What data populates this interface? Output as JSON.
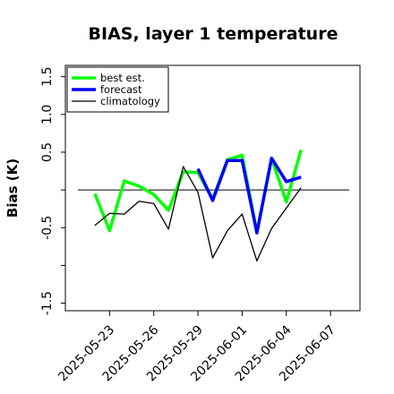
{
  "chart_data": {
    "type": "line",
    "title": "BIAS, layer 1 temperature",
    "xlabel": "",
    "ylabel": "Bias (K)",
    "x_is_date": true,
    "xlim": [
      "2025-05-20",
      "2025-06-09"
    ],
    "ylim": [
      -1.6,
      1.65
    ],
    "yticks": [
      -1.5,
      -1.0,
      -0.5,
      0.0,
      0.5,
      1.0,
      1.5
    ],
    "ytick_labels": [
      "-1.5",
      "",
      "-0.5",
      "",
      "0.5",
      "1.0",
      "1.5"
    ],
    "xticks": [
      "2025-05-23",
      "2025-05-26",
      "2025-05-29",
      "2025-06-01",
      "2025-06-04",
      "2025-06-07"
    ],
    "xtick_labels": [
      "2025-05-23",
      "2025-05-26",
      "2025-05-29",
      "2025-06-01",
      "2025-06-04",
      "2025-06-07"
    ],
    "highlight_tick": "2025-05-29",
    "highlight_color": "#2e8b2e",
    "zero_line": true,
    "grid": false,
    "legend_position": "top-left",
    "series": [
      {
        "name": "best est.",
        "color": "#00ff00",
        "x": [
          "2025-05-22",
          "2025-05-23",
          "2025-05-24",
          "2025-05-25",
          "2025-05-26",
          "2025-05-27",
          "2025-05-28",
          "2025-05-29",
          "2025-05-30",
          "2025-05-31",
          "2025-06-01",
          "2025-06-02",
          "2025-06-03",
          "2025-06-04",
          "2025-06-05",
          "2025-06-06"
        ],
        "values": [
          -0.05,
          -0.54,
          0.12,
          0.05,
          -0.06,
          -0.27,
          0.24,
          0.23,
          -0.12,
          0.4,
          0.46,
          -0.56,
          0.42,
          -0.16,
          0.53,
          null
        ]
      },
      {
        "name": "forecast",
        "color": "#0000ff",
        "x": [
          "2025-05-29",
          "2025-05-30",
          "2025-05-31",
          "2025-06-01",
          "2025-06-02",
          "2025-06-03",
          "2025-06-04",
          "2025-06-05",
          "2025-06-06"
        ],
        "values": [
          0.28,
          -0.14,
          0.39,
          0.39,
          -0.57,
          0.42,
          0.11,
          0.17,
          null
        ]
      },
      {
        "name": "climatology",
        "color": "#000000",
        "x": [
          "2025-05-22",
          "2025-05-23",
          "2025-05-24",
          "2025-05-25",
          "2025-05-26",
          "2025-05-27",
          "2025-05-28",
          "2025-05-29",
          "2025-05-30",
          "2025-05-31",
          "2025-06-01",
          "2025-06-02",
          "2025-06-03",
          "2025-06-04",
          "2025-06-05",
          "2025-06-06"
        ],
        "values": [
          -0.47,
          -0.31,
          -0.32,
          -0.15,
          -0.18,
          -0.52,
          0.31,
          -0.03,
          -0.9,
          -0.54,
          -0.32,
          -0.94,
          -0.51,
          -0.24,
          0.03,
          null
        ]
      }
    ]
  }
}
